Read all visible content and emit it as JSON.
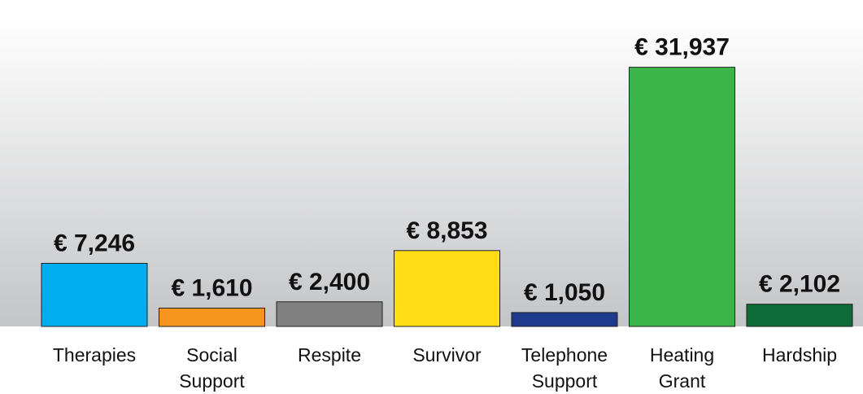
{
  "chart_data": {
    "type": "bar",
    "categories": [
      "Therapies",
      "Social Support",
      "Respite",
      "Survivor",
      "Telephone Support",
      "Heating Grant",
      "Hardship"
    ],
    "values": [
      7246,
      1610,
      2400,
      8853,
      1050,
      31937,
      2102
    ],
    "value_labels": [
      "€ 7,246",
      "€ 1,610",
      "€ 2,400",
      "€ 8,853",
      "€ 1,050",
      "€ 31,937",
      "€ 2,102"
    ],
    "colors": [
      "#00adef",
      "#f7941d",
      "#808080",
      "#ffde17",
      "#1e3a8c",
      "#39b54a",
      "#0c6b37"
    ],
    "ylim": [
      -700,
      32000
    ]
  }
}
